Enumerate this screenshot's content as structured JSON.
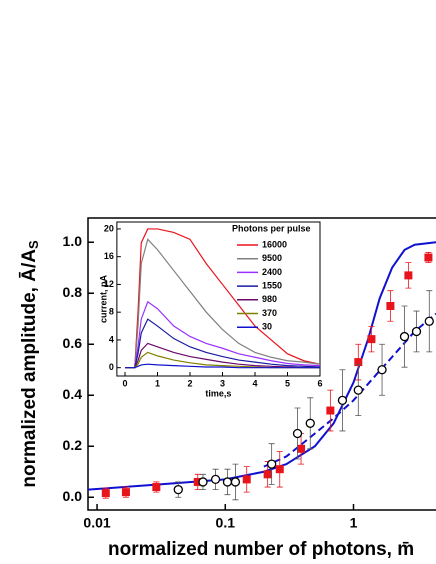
{
  "chart_data": {
    "type": "scatter",
    "xlabel": "normalized number of photons, m̄",
    "ylabel": "normalized amplitude, Ā/A",
    "ylabel_sub": "S",
    "log_x": true,
    "xlim": [
      0.0085,
      4.4
    ],
    "ylim": [
      -0.05,
      1.095
    ],
    "xticks": [
      0.01,
      0.1,
      1
    ],
    "yticks": [
      {
        "value": 0,
        "label": "0.0"
      },
      0.2,
      0.4,
      0.6,
      0.8,
      {
        "value": 1,
        "label": "1.0"
      }
    ],
    "points": [
      {
        "marker": "square",
        "color": "#e8141c",
        "x": [
          0.0117,
          0.0168,
          0.029,
          0.061,
          0.147,
          0.214,
          0.266,
          0.39,
          0.66,
          1.09,
          1.38,
          1.94,
          2.68,
          3.84
        ],
        "values": [
          0.016,
          0.02,
          0.04,
          0.06,
          0.07,
          0.09,
          0.11,
          0.19,
          0.34,
          0.53,
          0.62,
          0.75,
          0.87,
          0.94
        ],
        "errors": [
          0.02,
          0.02,
          0.02,
          0.03,
          0.05,
          0.05,
          0.07,
          0.06,
          0.08,
          0.07,
          0.05,
          0.06,
          0.05,
          0.02
        ]
      },
      {
        "marker": "circle",
        "color": "#000000",
        "x": [
          0.043,
          0.067,
          0.084,
          0.104,
          0.12,
          0.23,
          0.366,
          0.46,
          0.82,
          1.09,
          1.67,
          2.5,
          3.1,
          3.9
        ],
        "values": [
          0.03,
          0.06,
          0.07,
          0.06,
          0.06,
          0.13,
          0.25,
          0.29,
          0.38,
          0.42,
          0.5,
          0.63,
          0.65,
          0.69
        ],
        "errors": [
          0.03,
          0.03,
          0.04,
          0.05,
          0.07,
          0.08,
          0.1,
          0.1,
          0.12,
          0.1,
          0.1,
          0.12,
          0.08,
          0.12
        ]
      }
    ],
    "curves": [
      {
        "color": "#1010d0",
        "dash": false,
        "x": [
          0.0085,
          0.03,
          0.1,
          0.2,
          0.3,
          0.5,
          0.7,
          1,
          1.3,
          1.6,
          2,
          2.5,
          3,
          4.4
        ],
        "values": [
          0.03,
          0.05,
          0.07,
          0.1,
          0.13,
          0.2,
          0.29,
          0.45,
          0.62,
          0.78,
          0.9,
          0.97,
          0.99,
          1.0
        ]
      },
      {
        "color": "#1010d0",
        "dash": true,
        "x": [
          0.2,
          0.3,
          0.5,
          0.7,
          1,
          1.5,
          2,
          3,
          4.4
        ],
        "values": [
          0.12,
          0.16,
          0.25,
          0.31,
          0.38,
          0.48,
          0.55,
          0.65,
          0.72
        ]
      }
    ],
    "inset": {
      "type": "line",
      "legend_title": "Photons per pulse",
      "xlabel": "time,s",
      "ylabel": "current, pA",
      "xlim": [
        -0.25,
        6
      ],
      "ylim": [
        -1.2,
        21
      ],
      "xticks": [
        0,
        1,
        2,
        3,
        4,
        5,
        6
      ],
      "yticks": [
        0,
        4,
        8,
        12,
        16,
        20
      ],
      "x": [
        0,
        0.3,
        0.4,
        0.5,
        0.7,
        1,
        1.5,
        2,
        2.5,
        3,
        3.5,
        4,
        4.5,
        5,
        5.5,
        6
      ],
      "series": [
        {
          "name": "16000",
          "color": "#e8141c",
          "values": [
            0,
            0,
            8,
            18,
            20,
            20,
            19.5,
            18.5,
            15,
            12,
            9,
            6,
            4,
            2,
            1,
            0.5
          ]
        },
        {
          "name": "9500",
          "color": "#808080",
          "values": [
            0,
            0,
            6,
            15,
            18.5,
            17,
            14,
            11,
            8,
            5.5,
            3.5,
            2.2,
            1.5,
            1,
            0.8,
            0.5
          ]
        },
        {
          "name": "2400",
          "color": "#9b30ff",
          "values": [
            0,
            0,
            3,
            7,
            9.5,
            8.5,
            6,
            4.5,
            3.5,
            2.8,
            2,
            1.5,
            1,
            0.6,
            0.4,
            0.3
          ]
        },
        {
          "name": "1550",
          "color": "#1a1aa0",
          "values": [
            0,
            0,
            2,
            5,
            7,
            6,
            4.2,
            3,
            2.2,
            1.6,
            1.1,
            0.8,
            0.5,
            0.3,
            0.2,
            0.1
          ]
        },
        {
          "name": "980",
          "color": "#6a0a6a",
          "values": [
            0,
            0,
            1,
            2.5,
            3.5,
            3,
            2.2,
            1.6,
            1.2,
            0.8,
            0.5,
            0.3,
            0.2,
            0.1,
            0,
            0
          ]
        },
        {
          "name": "370",
          "color": "#808000",
          "values": [
            0,
            0,
            0.5,
            1.5,
            2.2,
            1.7,
            1.1,
            0.7,
            0.4,
            0.3,
            0.2,
            0.1,
            0,
            0,
            0,
            0
          ]
        },
        {
          "name": "30",
          "color": "#1010d0",
          "values": [
            0,
            0,
            0.2,
            0.4,
            0.5,
            0.4,
            0.3,
            0.2,
            0.1,
            0.1,
            0,
            0,
            0,
            0,
            0,
            0
          ]
        }
      ]
    }
  }
}
